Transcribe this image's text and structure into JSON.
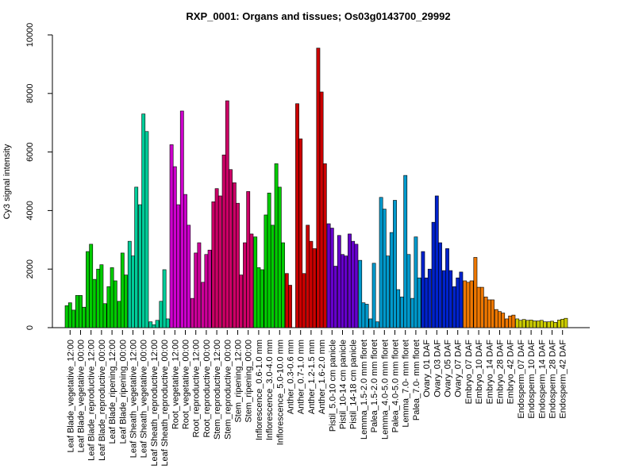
{
  "chart_data": {
    "type": "bar",
    "title": "RXP_0001: Organs and tissues; Os03g0143700_29992",
    "ylabel": "Cy3 signal intensity",
    "xlabel": "",
    "ylim": [
      0,
      10000
    ],
    "yticks": [
      0,
      2000,
      4000,
      6000,
      8000,
      10000
    ],
    "groups": [
      {
        "label": "Leaf Blade_vegetative_12:00",
        "color": "#00cc00",
        "values": [
          750,
          850,
          600
        ]
      },
      {
        "label": "Leaf Blade_vegetative_00:00",
        "color": "#00cc00",
        "values": [
          1100,
          1100,
          700
        ]
      },
      {
        "label": "Leaf Blade_reproductive_12:00",
        "color": "#00cc00",
        "values": [
          2600,
          2850,
          1650
        ]
      },
      {
        "label": "Leaf Blade_reproductive_00:00",
        "color": "#00cc00",
        "values": [
          2000,
          2150,
          820
        ]
      },
      {
        "label": "Leaf Blade_ripening_12:00",
        "color": "#00cc00",
        "values": [
          1400,
          2050,
          1600
        ]
      },
      {
        "label": "Leaf Blade_ripening_00:00",
        "color": "#00cc00",
        "values": [
          900,
          2550,
          1800
        ]
      },
      {
        "label": "Leaf Sheath_vegetative_12:00",
        "color": "#00cc99",
        "values": [
          2950,
          2450,
          4800
        ]
      },
      {
        "label": "Leaf Sheath_vegetative_00:00",
        "color": "#00cc99",
        "values": [
          4200,
          7300,
          6700
        ]
      },
      {
        "label": "Leaf Sheath_reproductive_12:00",
        "color": "#00cc99",
        "values": [
          200,
          100,
          250
        ]
      },
      {
        "label": "Leaf Sheath_reproductive_00:00",
        "color": "#00cc99",
        "values": [
          900,
          1980,
          300
        ]
      },
      {
        "label": "Root_vegetative_12:00",
        "color": "#cc00cc",
        "values": [
          6250,
          5500,
          4200
        ]
      },
      {
        "label": "Root_vegetative_00:00",
        "color": "#cc00cc",
        "values": [
          7400,
          4550,
          3500
        ]
      },
      {
        "label": "Root_reproductive_12:00",
        "color": "#cc0099",
        "values": [
          1000,
          2550,
          2900
        ]
      },
      {
        "label": "Root_reproductive_00:00",
        "color": "#cc0099",
        "values": [
          1550,
          2500,
          2650
        ]
      },
      {
        "label": "Stem_reproductive_12:00",
        "color": "#cc0066",
        "values": [
          4300,
          4750,
          4500
        ]
      },
      {
        "label": "Stem_reproductive_00:00",
        "color": "#cc0066",
        "values": [
          5900,
          7750,
          5400
        ]
      },
      {
        "label": "Stem_ripening_12:00",
        "color": "#cc0066",
        "values": [
          4950,
          4250,
          1800
        ]
      },
      {
        "label": "Stem_ripening_00:00",
        "color": "#cc0066",
        "values": [
          2900,
          4650,
          3200
        ]
      },
      {
        "label": "Inflorescence_0.6-1.0 mm",
        "color": "#00cc00",
        "values": [
          3100,
          2050,
          1980
        ]
      },
      {
        "label": "Inflorescence_3.0-4.0 mm",
        "color": "#00cc00",
        "values": [
          3850,
          4600,
          3500
        ]
      },
      {
        "label": "Inflorescence_5.0-10.0 mm",
        "color": "#00cc00",
        "values": [
          5600,
          4800,
          2900
        ]
      },
      {
        "label": "Anther_0.3-0.6 mm",
        "color": "#cc0000",
        "values": [
          1850,
          1450
        ]
      },
      {
        "label": "Anther_0.7-1.0 mm",
        "color": "#cc0000",
        "values": [
          7650,
          6450,
          1850
        ]
      },
      {
        "label": "Anther_1.2-1.5 mm",
        "color": "#cc0000",
        "values": [
          3500,
          2950,
          2700
        ]
      },
      {
        "label": "Anther_1.6-2.0 mm",
        "color": "#cc0000",
        "values": [
          9550,
          8050,
          5600
        ]
      },
      {
        "label": "Pistil_5.0-10 cm panicle",
        "color": "#6600cc",
        "values": [
          3550,
          3400,
          2100
        ]
      },
      {
        "label": "Pistil_10-14 cm panicle",
        "color": "#6600cc",
        "values": [
          3150,
          2500,
          2450
        ]
      },
      {
        "label": "Pistil_14-18 cm panicle",
        "color": "#6600cc",
        "values": [
          3200,
          2950,
          2850
        ]
      },
      {
        "label": "Lemma_1.5-2.0 mm floret",
        "color": "#0099cc",
        "values": [
          2300,
          850,
          800
        ]
      },
      {
        "label": "Palea_1.5-2.0 mm floret",
        "color": "#0099cc",
        "values": [
          300,
          2200,
          200
        ]
      },
      {
        "label": "Lemma_4.0-5.0 mm floret",
        "color": "#0099cc",
        "values": [
          4450,
          4050,
          2450
        ]
      },
      {
        "label": "Palea_4.0-5.0 mm floret",
        "color": "#0099cc",
        "values": [
          3250,
          4350,
          1300
        ]
      },
      {
        "label": "Lemma_7.0- mm floret",
        "color": "#0099cc",
        "values": [
          1050,
          5200,
          2500
        ]
      },
      {
        "label": "Palea_7.0- mm floret",
        "color": "#0099cc",
        "values": [
          1000,
          3100,
          1700
        ]
      },
      {
        "label": "Ovary_01 DAF",
        "color": "#0022cc",
        "values": [
          2600,
          1700,
          2000
        ]
      },
      {
        "label": "Ovary_03 DAF",
        "color": "#0022cc",
        "values": [
          3600,
          4500,
          2900
        ]
      },
      {
        "label": "Ovary_05 DAF",
        "color": "#0022cc",
        "values": [
          1950,
          2700,
          1950
        ]
      },
      {
        "label": "Ovary_07 DAF",
        "color": "#0022cc",
        "values": [
          1400,
          1700,
          1900
        ]
      },
      {
        "label": "Embryo_07 DAF",
        "color": "#ee7700",
        "values": [
          1600,
          1550,
          1600
        ]
      },
      {
        "label": "Embryo_10 DAF",
        "color": "#ee7700",
        "values": [
          2400,
          1380,
          1380
        ]
      },
      {
        "label": "Embryo_14 DAF",
        "color": "#ee7700",
        "values": [
          1050,
          950,
          950
        ]
      },
      {
        "label": "Embryo_28 DAF",
        "color": "#ee7700",
        "values": [
          620,
          550,
          500
        ]
      },
      {
        "label": "Embryo_42 DAF",
        "color": "#ee7700",
        "values": [
          300,
          400,
          430
        ]
      },
      {
        "label": "Endosperm_07 DAF",
        "color": "#cccc00",
        "values": [
          300,
          250,
          280
        ]
      },
      {
        "label": "Endosperm_10 DAF",
        "color": "#cccc00",
        "values": [
          250,
          260,
          230
        ]
      },
      {
        "label": "Endosperm_14 DAF",
        "color": "#cccc00",
        "values": [
          230,
          250,
          200
        ]
      },
      {
        "label": "Endosperm_28 DAF",
        "color": "#cccc00",
        "values": [
          200,
          220,
          180
        ]
      },
      {
        "label": "Endosperm_42 DAF",
        "color": "#cccc00",
        "values": [
          260,
          290,
          320
        ]
      }
    ]
  }
}
